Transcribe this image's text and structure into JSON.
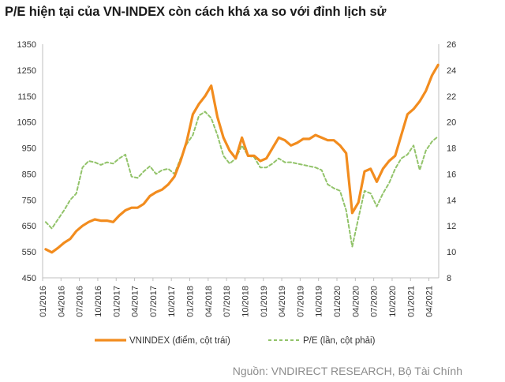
{
  "title": "P/E hiện tại của VN-INDEX còn cách khá xa so với đỉnh lịch sử",
  "source": "Nguồn: VNDIRECT RESEARCH, Bộ Tài Chính",
  "colors": {
    "vnindex": "#f28c1e",
    "pe": "#92c36a",
    "axis": "#bfbfbf"
  },
  "chart_data": {
    "type": "line",
    "title": "P/E hiện tại của VN-INDEX còn cách khá xa so với đỉnh lịch sử",
    "x_ticks": [
      "01/2016",
      "04/2016",
      "07/2016",
      "10/2016",
      "01/2017",
      "04/2017",
      "07/2017",
      "10/2017",
      "01/2018",
      "04/2018",
      "07/2018",
      "10/2018",
      "01/2019",
      "04/2019",
      "07/2019",
      "10/2019",
      "01/2020",
      "04/2020",
      "07/2020",
      "10/2020",
      "01/2021",
      "04/2021"
    ],
    "y_left": {
      "min": 450,
      "max": 1350,
      "ticks": [
        450,
        550,
        650,
        750,
        850,
        950,
        1050,
        1150,
        1250,
        1350
      ]
    },
    "y_right": {
      "min": 8,
      "max": 26,
      "ticks": [
        8,
        10,
        12,
        14,
        16,
        18,
        20,
        22,
        24,
        26
      ]
    },
    "legend": {
      "position": "bottom"
    },
    "series": [
      {
        "name": "VNINDEX (điểm, cột trái)",
        "axis": "left",
        "style": "solid",
        "x": [
          "2016-01",
          "2016-02",
          "2016-03",
          "2016-04",
          "2016-05",
          "2016-06",
          "2016-07",
          "2016-08",
          "2016-09",
          "2016-10",
          "2016-11",
          "2016-12",
          "2017-01",
          "2017-02",
          "2017-03",
          "2017-04",
          "2017-05",
          "2017-06",
          "2017-07",
          "2017-08",
          "2017-09",
          "2017-10",
          "2017-11",
          "2017-12",
          "2018-01",
          "2018-02",
          "2018-03",
          "2018-04",
          "2018-05",
          "2018-06",
          "2018-07",
          "2018-08",
          "2018-09",
          "2018-10",
          "2018-11",
          "2018-12",
          "2019-01",
          "2019-02",
          "2019-03",
          "2019-04",
          "2019-05",
          "2019-06",
          "2019-07",
          "2019-08",
          "2019-09",
          "2019-10",
          "2019-11",
          "2019-12",
          "2020-01",
          "2020-02",
          "2020-03",
          "2020-04",
          "2020-05",
          "2020-06",
          "2020-07",
          "2020-08",
          "2020-09",
          "2020-10",
          "2020-11",
          "2020-12",
          "2021-01",
          "2021-02",
          "2021-03",
          "2021-04",
          "2021-05"
        ],
        "values": [
          560,
          548,
          565,
          585,
          600,
          630,
          650,
          665,
          675,
          670,
          670,
          665,
          690,
          710,
          720,
          720,
          735,
          765,
          780,
          790,
          810,
          840,
          900,
          975,
          1080,
          1120,
          1150,
          1190,
          1070,
          990,
          940,
          910,
          990,
          920,
          920,
          900,
          910,
          950,
          990,
          980,
          960,
          970,
          985,
          985,
          1000,
          990,
          980,
          980,
          960,
          930,
          700,
          740,
          860,
          870,
          820,
          870,
          900,
          920,
          1000,
          1080,
          1100,
          1130,
          1170,
          1230,
          1270
        ]
      },
      {
        "name": "P/E (lần, cột phải)",
        "axis": "right",
        "style": "dashed",
        "x": [
          "2016-01",
          "2016-02",
          "2016-03",
          "2016-04",
          "2016-05",
          "2016-06",
          "2016-07",
          "2016-08",
          "2016-09",
          "2016-10",
          "2016-11",
          "2016-12",
          "2017-01",
          "2017-02",
          "2017-03",
          "2017-04",
          "2017-05",
          "2017-06",
          "2017-07",
          "2017-08",
          "2017-09",
          "2017-10",
          "2017-11",
          "2017-12",
          "2018-01",
          "2018-02",
          "2018-03",
          "2018-04",
          "2018-05",
          "2018-06",
          "2018-07",
          "2018-08",
          "2018-09",
          "2018-10",
          "2018-11",
          "2018-12",
          "2019-01",
          "2019-02",
          "2019-03",
          "2019-04",
          "2019-05",
          "2019-06",
          "2019-07",
          "2019-08",
          "2019-09",
          "2019-10",
          "2019-11",
          "2019-12",
          "2020-01",
          "2020-02",
          "2020-03",
          "2020-04",
          "2020-05",
          "2020-06",
          "2020-07",
          "2020-08",
          "2020-09",
          "2020-10",
          "2020-11",
          "2020-12",
          "2021-01",
          "2021-02",
          "2021-03",
          "2021-04",
          "2021-05"
        ],
        "values": [
          12.3,
          11.8,
          12.5,
          13.2,
          14.0,
          14.5,
          16.5,
          17.0,
          16.9,
          16.7,
          16.9,
          16.8,
          17.2,
          17.5,
          15.8,
          15.7,
          16.2,
          16.6,
          16.0,
          16.3,
          16.4,
          16.0,
          17.2,
          18.3,
          19.0,
          20.5,
          20.8,
          20.3,
          19.0,
          17.4,
          16.8,
          17.2,
          18.2,
          17.4,
          17.3,
          16.5,
          16.5,
          16.8,
          17.2,
          16.9,
          16.9,
          16.8,
          16.7,
          16.6,
          16.5,
          16.3,
          15.2,
          14.9,
          14.7,
          13.2,
          10.4,
          12.6,
          14.7,
          14.5,
          13.5,
          14.5,
          15.3,
          16.4,
          17.2,
          17.5,
          18.2,
          16.3,
          17.8,
          18.5,
          18.9
        ]
      }
    ]
  }
}
